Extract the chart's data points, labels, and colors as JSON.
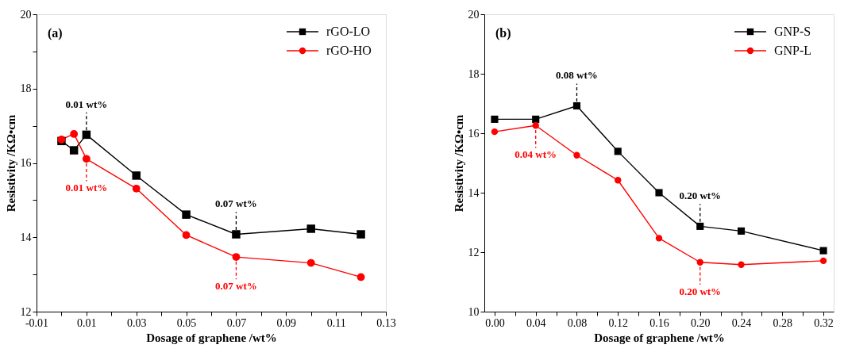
{
  "chart_data": [
    {
      "type": "line",
      "title": "(a)",
      "xlabel": "Dosage of graphene /wt%",
      "ylabel": "Resistivity /KΩ•cm",
      "x": [
        0,
        0.005,
        0.01,
        0.03,
        0.05,
        0.07,
        0.1,
        0.12
      ],
      "series": [
        {
          "name": "rGO-LO",
          "color": "#000000",
          "marker": "square",
          "values": [
            16.59,
            16.34,
            16.76,
            15.66,
            14.61,
            14.08,
            14.23,
            14.08
          ]
        },
        {
          "name": "rGO-HO",
          "color": "#ff0000",
          "marker": "circle",
          "values": [
            16.63,
            16.78,
            16.11,
            15.31,
            14.06,
            13.47,
            13.31,
            12.93
          ]
        }
      ],
      "xlim": [
        -0.01,
        0.13
      ],
      "ylim": [
        12,
        20
      ],
      "xticks": [
        -0.01,
        {
          "value": 0,
          "label": null
        },
        0.01,
        {
          "value": 0.02,
          "label": null
        },
        0.03,
        {
          "value": 0.04,
          "label": null
        },
        0.05,
        {
          "value": 0.06,
          "label": null
        },
        0.07,
        {
          "value": 0.08,
          "label": null
        },
        0.09,
        {
          "value": 0.1,
          "label": null
        },
        0.11,
        {
          "value": 0.12,
          "label": null
        },
        0.13
      ],
      "yticks": [
        12,
        {
          "value": 13,
          "label": null
        },
        14,
        {
          "value": 15,
          "label": null
        },
        16,
        {
          "value": 17,
          "label": null
        },
        18,
        {
          "value": 19,
          "label": null
        },
        20
      ],
      "annotations": [
        {
          "text": "0.01 wt%",
          "x": 0.01,
          "y": 16.76
        },
        {
          "text": "0.01 wt%",
          "x": 0.01,
          "y": 16.11
        },
        {
          "text": "0.07 wt%",
          "x": 0.07,
          "y": 14.08
        },
        {
          "text": "0.07 wt%",
          "x": 0.07,
          "y": 13.47
        }
      ],
      "legend": "top right",
      "grid": false,
      "line_style": "solid"
    },
    {
      "type": "line",
      "title": "(b)",
      "xlabel": "Dosage of graphene /wt%",
      "ylabel": "Resistivity /KΩ•cm",
      "x": [
        0,
        0.04,
        0.08,
        0.12,
        0.16,
        0.2,
        0.24,
        0.32
      ],
      "series": [
        {
          "name": "GNP-S",
          "color": "#000000",
          "marker": "square",
          "values": [
            16.47,
            16.47,
            16.92,
            15.39,
            14.0,
            12.87,
            12.71,
            12.05
          ]
        },
        {
          "name": "GNP-L",
          "color": "#ff0000",
          "marker": "circle",
          "values": [
            16.05,
            16.26,
            15.26,
            14.42,
            12.47,
            11.66,
            11.58,
            11.71
          ]
        }
      ],
      "xlim": [
        -0.01,
        0.33
      ],
      "ylim": [
        10,
        20
      ],
      "xticks": [
        {
          "value": 0,
          "label": "0.00"
        },
        {
          "value": 0.02,
          "label": null
        },
        0.04,
        {
          "value": 0.06,
          "label": null
        },
        0.08,
        {
          "value": 0.1,
          "label": null
        },
        0.12,
        {
          "value": 0.14,
          "label": null
        },
        0.16,
        {
          "value": 0.18,
          "label": null
        },
        {
          "value": 0.2,
          "label": "0.20"
        },
        {
          "value": 0.22,
          "label": null
        },
        0.24,
        {
          "value": 0.26,
          "label": null
        },
        0.28,
        {
          "value": 0.3,
          "label": null
        },
        0.32
      ],
      "yticks": [
        10,
        12,
        14,
        16,
        18,
        20
      ],
      "annotations": [
        {
          "text": "0.08 wt%",
          "x": 0.08,
          "y": 16.92
        },
        {
          "text": "0.04 wt%",
          "x": 0.04,
          "y": 16.26
        },
        {
          "text": "0.20 wt%",
          "x": 0.2,
          "y": 12.87
        },
        {
          "text": "0.20 wt%",
          "x": 0.2,
          "y": 11.66
        }
      ],
      "legend": "top right",
      "grid": false,
      "line_style": "solid"
    }
  ]
}
